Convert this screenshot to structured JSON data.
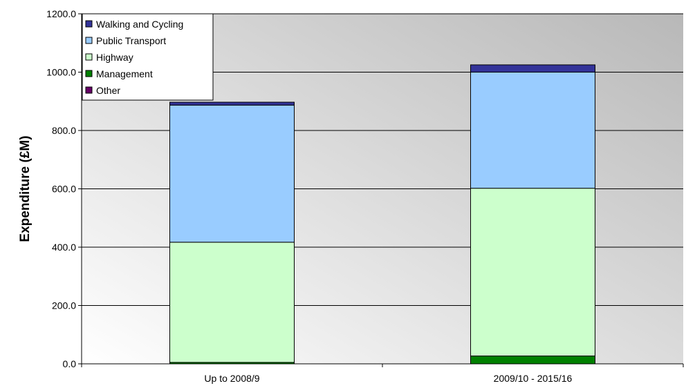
{
  "chart_data": {
    "type": "bar",
    "stacked": true,
    "categories": [
      "Up to 2008/9",
      "2009/10 - 2015/16"
    ],
    "series": [
      {
        "name": "Other",
        "color": "#660066",
        "values": [
          0.0,
          0.0
        ]
      },
      {
        "name": "Management",
        "color": "#008000",
        "values": [
          5.0,
          27.0
        ]
      },
      {
        "name": "Highway",
        "color": "#ccffcc",
        "values": [
          412.0,
          575.0
        ]
      },
      {
        "name": "Public Transport",
        "color": "#99ccff",
        "values": [
          470.0,
          398.0
        ]
      },
      {
        "name": "Walking and Cycling",
        "color": "#333399",
        "values": [
          10.0,
          25.0
        ]
      }
    ],
    "legend_order": [
      "Walking and Cycling",
      "Public Transport",
      "Highway",
      "Management",
      "Other"
    ],
    "title": "",
    "xlabel": "",
    "ylabel": "Expenditure (£M)",
    "ylim": [
      0,
      1200
    ],
    "yticks": [
      "0.0",
      "200.0",
      "400.0",
      "600.0",
      "800.0",
      "1000.0",
      "1200.0"
    ],
    "grid": true,
    "legend_position": "top-left"
  }
}
